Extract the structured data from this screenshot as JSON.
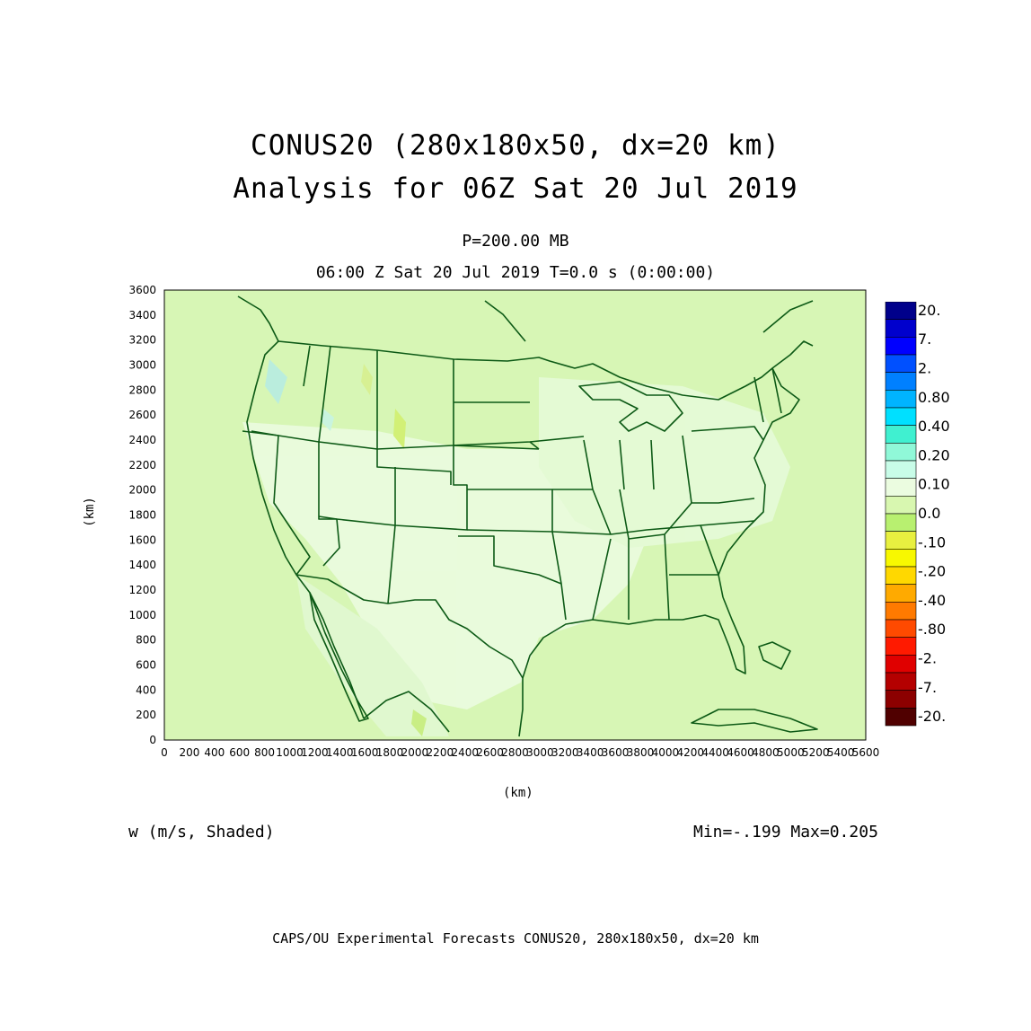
{
  "title": {
    "line1": "CONUS20 (280x180x50, dx=20 km)",
    "line2": "Analysis for 06Z Sat 20 Jul 2019"
  },
  "subtitle": {
    "level": "P=200.00 MB",
    "time": "06:00 Z Sat 20 Jul 2019    T=0.0 s (0:00:00)"
  },
  "axes": {
    "x_label": "(km)",
    "y_label": "(km)",
    "x_ticks": [
      0,
      200,
      400,
      600,
      800,
      1000,
      1200,
      1400,
      1600,
      1800,
      2000,
      2200,
      2400,
      2600,
      2800,
      3000,
      3200,
      3400,
      3600,
      3800,
      4000,
      4200,
      4400,
      4600,
      4800,
      5000,
      5200,
      5400,
      5600
    ],
    "y_ticks": [
      0,
      200,
      400,
      600,
      800,
      1000,
      1200,
      1400,
      1600,
      1800,
      2000,
      2200,
      2400,
      2600,
      2800,
      3000,
      3200,
      3400,
      3600
    ],
    "x_range": [
      0,
      5600
    ],
    "y_range": [
      0,
      3600
    ]
  },
  "field": {
    "label": "w (m/s, Shaded)",
    "stats": "Min=-.199  Max=0.205"
  },
  "colorbar": {
    "labels": [
      "20.",
      "7.",
      "2.",
      "0.80",
      "0.40",
      "0.20",
      "0.10",
      "0.0",
      "-.10",
      "-.20",
      "-.40",
      "-.80",
      "-2.",
      "-7.",
      "-20."
    ],
    "colors": [
      "#00008b",
      "#0000cd",
      "#0000ff",
      "#0050ff",
      "#0080ff",
      "#00b4ff",
      "#00e0ff",
      "#40f0d0",
      "#90f8d8",
      "#c8fce8",
      "#ebfce0",
      "#d8f7b0",
      "#b8f070",
      "#e8f040",
      "#f8f800",
      "#ffd800",
      "#ffaa00",
      "#ff7a00",
      "#ff4a00",
      "#ff1a00",
      "#e00000",
      "#b40000",
      "#8c0000",
      "#500000"
    ]
  },
  "footer": "CAPS/OU Experimental Forecasts  CONUS20, 280x180x50, dx=20 km",
  "map": {
    "background_color": "#d7f6b5",
    "boundary_color": "#0d5a16"
  }
}
